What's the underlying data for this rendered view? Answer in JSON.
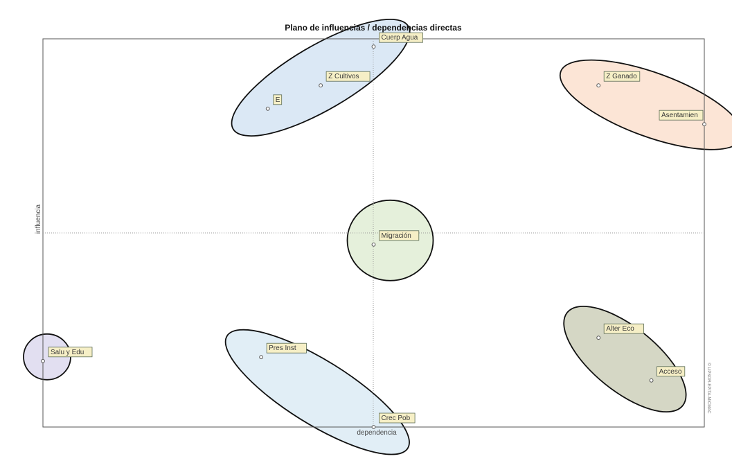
{
  "chart_data": {
    "type": "scatter",
    "title": "Plano de influencias / dependencias directas",
    "xlabel": "dependencia",
    "ylabel": "influencia",
    "watermark": "© LIPSOR-EPITA-MICMAC",
    "xlim": [
      0,
      100
    ],
    "ylim": [
      0,
      100
    ],
    "grid": false,
    "quadrant_lines": {
      "x": 50,
      "y": 50
    },
    "points": [
      {
        "label": "Cuerp Agua",
        "x": 50,
        "y": 98
      },
      {
        "label": "Z Cultivos",
        "x": 42,
        "y": 88
      },
      {
        "label": "E",
        "x": 34,
        "y": 82
      },
      {
        "label": "Z Ganado",
        "x": 84,
        "y": 88
      },
      {
        "label": "Asentamien",
        "x": 100,
        "y": 78
      },
      {
        "label": "Migración",
        "x": 50,
        "y": 47
      },
      {
        "label": "Alter Eco",
        "x": 84,
        "y": 23
      },
      {
        "label": "Acceso",
        "x": 92,
        "y": 12
      },
      {
        "label": "Salu y Edu",
        "x": 0,
        "y": 17
      },
      {
        "label": "Pres Inst",
        "x": 33,
        "y": 18
      },
      {
        "label": "Crec Pob",
        "x": 50,
        "y": 0
      }
    ],
    "groups": [
      {
        "color": "#cfe0f2",
        "members": [
          "Cuerp Agua",
          "Z Cultivos",
          "E"
        ]
      },
      {
        "color": "#fbdcc8",
        "members": [
          "Z Ganado",
          "Asentamien"
        ]
      },
      {
        "color": "#dcebcf",
        "members": [
          "Migración"
        ]
      },
      {
        "color": "#c7cab2",
        "members": [
          "Alter Eco",
          "Acceso"
        ]
      },
      {
        "color": "#d8d4ec",
        "members": [
          "Salu y Edu"
        ]
      },
      {
        "color": "#d7e8f3",
        "members": [
          "Pres Inst",
          "Crec Pob"
        ]
      }
    ],
    "colors": {
      "label_fill": "#f6efc6",
      "label_border": "#5b6b55",
      "ellipse_stroke": "#111111",
      "axis_line": "#555555",
      "quadrant_line": "#9a9a9a",
      "point": "#555555"
    }
  }
}
